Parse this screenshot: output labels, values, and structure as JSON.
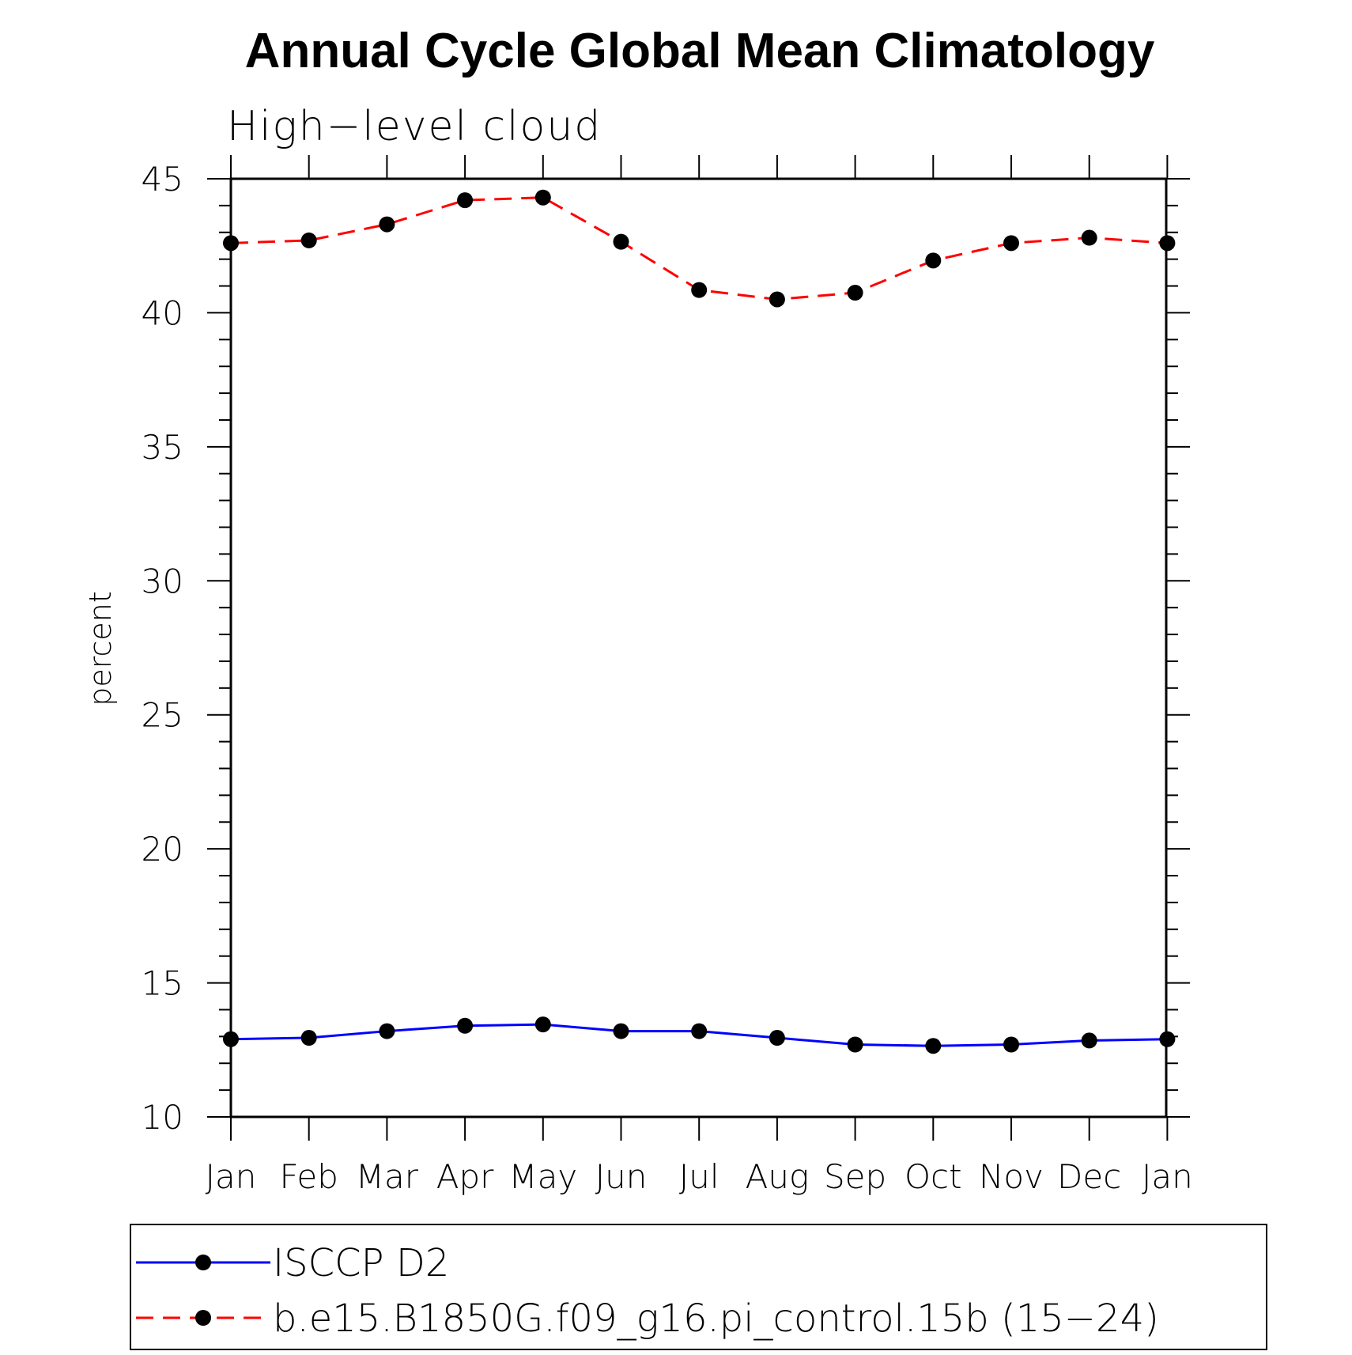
{
  "chart_data": {
    "type": "line",
    "title": "Annual Cycle Global Mean Climatology",
    "subtitle": "High−level cloud",
    "xlabel": "",
    "ylabel": "percent",
    "categories": [
      "Jan",
      "Feb",
      "Mar",
      "Apr",
      "May",
      "Jun",
      "Jul",
      "Aug",
      "Sep",
      "Oct",
      "Nov",
      "Dec",
      "Jan"
    ],
    "ylim": [
      10,
      45
    ],
    "yticks": [
      10,
      15,
      20,
      25,
      30,
      35,
      40,
      45
    ],
    "y_minor_step": 1,
    "grid": false,
    "legend_position": "bottom",
    "marker_color": "#000000",
    "series": [
      {
        "name": "ISCCP D2",
        "color": "#0000ff",
        "dash": "solid",
        "values": [
          12.9,
          12.95,
          13.2,
          13.4,
          13.45,
          13.2,
          13.2,
          12.95,
          12.7,
          12.65,
          12.7,
          12.85,
          12.9
        ]
      },
      {
        "name": "b.e15.B1850G.f09_g16.pi_control.15b (15−24)",
        "color": "#ff0000",
        "dash": "dashed",
        "values": [
          42.6,
          42.7,
          43.3,
          44.2,
          44.3,
          42.65,
          40.85,
          40.5,
          40.75,
          41.95,
          42.6,
          42.8,
          42.6
        ]
      }
    ]
  }
}
